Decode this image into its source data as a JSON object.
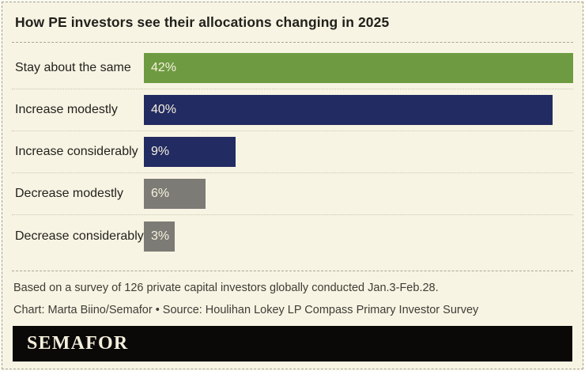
{
  "title": "How PE investors see their allocations changing in 2025",
  "chart_data": {
    "type": "bar",
    "orientation": "horizontal",
    "title": "How PE investors see their allocations changing in 2025",
    "categories": [
      "Stay about the same",
      "Increase modestly",
      "Increase considerably",
      "Decrease modestly",
      "Decrease considerably"
    ],
    "values": [
      42,
      40,
      9,
      6,
      3
    ],
    "value_labels": [
      "42%",
      "40%",
      "9%",
      "6%",
      "3%"
    ],
    "bar_colors": [
      "#6e9b41",
      "#232b63",
      "#232b63",
      "#7d7b75",
      "#7d7b75"
    ],
    "xlim": [
      0,
      42
    ],
    "value_label_position": "inside-left",
    "grid": false,
    "legend": false
  },
  "footer": {
    "note": "Based on a survey of 126 private capital investors globally conducted Jan.3-Feb.28.",
    "credit": "Chart: Marta Biino/Semafor • Source: Houlihan Lokey LP Compass Primary Investor Survey"
  },
  "logo": {
    "text": "SEMAFOR"
  },
  "colors": {
    "card_background": "#f8f4e3",
    "green": "#6e9b41",
    "navy": "#232b63",
    "gray": "#7d7b75",
    "bar_value_text": "#f6f2de",
    "logo_background": "#0a0908",
    "logo_text": "#f4efdc"
  }
}
